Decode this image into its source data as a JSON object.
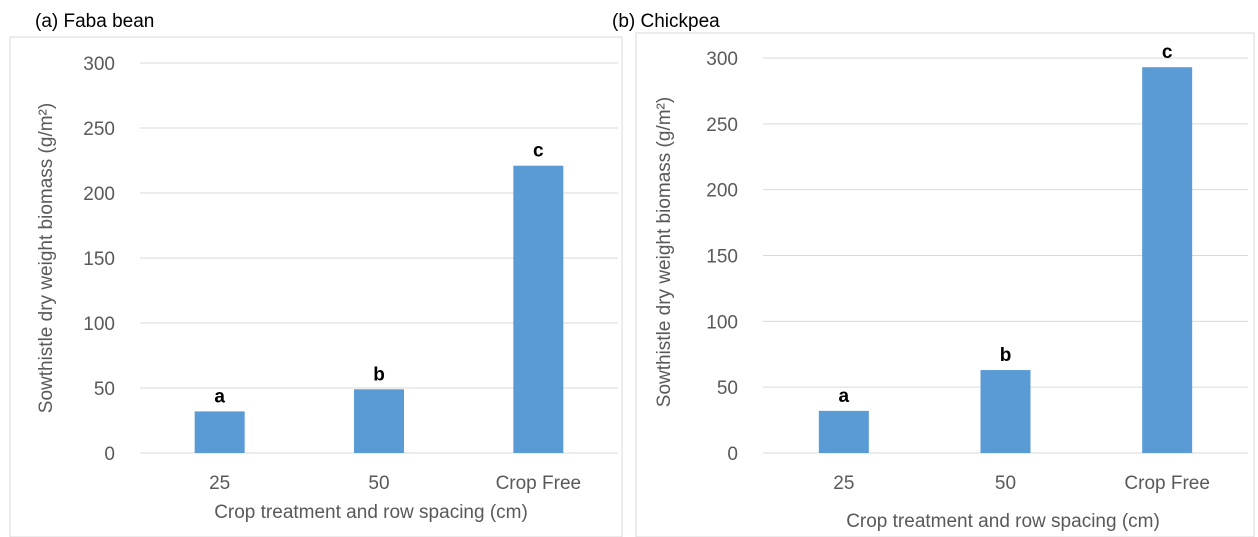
{
  "chart_data": [
    {
      "type": "bar",
      "title": "(a) Faba bean",
      "xlabel": "Crop treatment and row spacing (cm)",
      "ylabel": "Sowthistle dry weight biomass (g/m²)",
      "categories": [
        "25",
        "50",
        "Crop Free"
      ],
      "values": [
        32,
        49,
        221
      ],
      "data_labels": [
        "a",
        "b",
        "c"
      ],
      "ylim": [
        0,
        300
      ],
      "yticks": [
        0,
        50,
        100,
        150,
        200,
        250,
        300
      ],
      "grid": true,
      "legend": "none",
      "bar_color": "#5B9BD5"
    },
    {
      "type": "bar",
      "title": "(b) Chickpea",
      "xlabel": "Crop treatment and row spacing (cm)",
      "ylabel": "Sowthistle dry weight biomass (g/m²)",
      "categories": [
        "25",
        "50",
        "Crop Free"
      ],
      "values": [
        32,
        63,
        293
      ],
      "data_labels": [
        "a",
        "b",
        "c"
      ],
      "ylim": [
        0,
        300
      ],
      "yticks": [
        0,
        50,
        100,
        150,
        200,
        250,
        300
      ],
      "grid": true,
      "legend": "none",
      "bar_color": "#5B9BD5"
    }
  ]
}
